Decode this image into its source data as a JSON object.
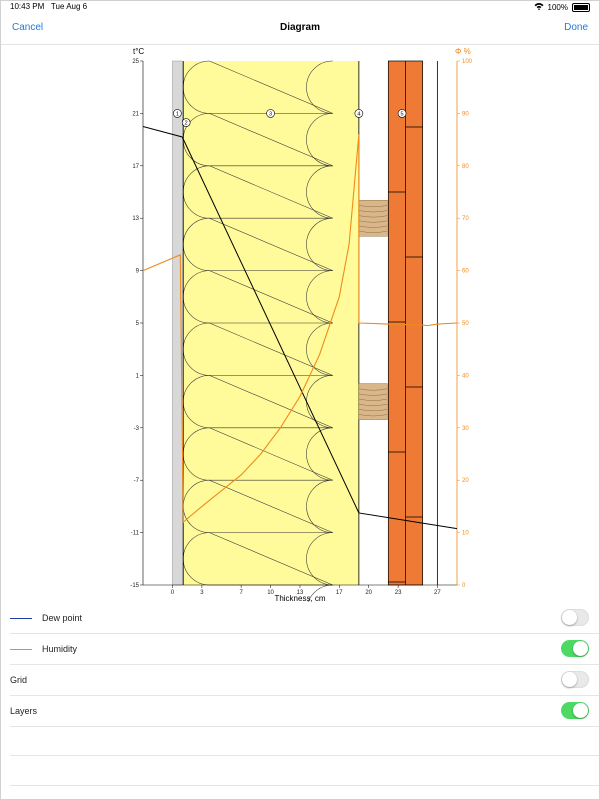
{
  "status": {
    "time": "10:43 PM",
    "date": "Tue Aug 6",
    "battery": "100%"
  },
  "nav": {
    "cancel": "Cancel",
    "title": "Diagram",
    "done": "Done"
  },
  "colors": {
    "accent": "#1f7bd8",
    "humidity": "#f08a1c",
    "dew": "#1f3fa0",
    "toggle_on": "#4cd964",
    "insulation": "#fffb9a",
    "brick": "#ef7a35",
    "plaster": "#d8d8d8",
    "wood": "#d9b78a"
  },
  "chart_data": {
    "type": "line",
    "xlabel": "Thickness, cm",
    "left_axis_label": "t°C",
    "right_axis_label": "Φ %",
    "x_ticks": [
      "0",
      "3",
      "7",
      "10",
      "13",
      "17",
      "20",
      "23",
      "27"
    ],
    "x_tick_values": [
      0,
      3,
      7,
      10,
      13,
      17,
      20,
      23,
      27
    ],
    "xlim": [
      -3,
      29
    ],
    "y_ticks": [
      "25",
      "21",
      "17",
      "13",
      "9",
      "5",
      "1",
      "-3",
      "-7",
      "-11",
      "-15"
    ],
    "y_tick_values": [
      25,
      21,
      17,
      13,
      9,
      5,
      1,
      -3,
      -7,
      -11,
      -15
    ],
    "ylim": [
      -15,
      25
    ],
    "y2_ticks": [
      "100",
      "90",
      "80",
      "70",
      "60",
      "50",
      "40",
      "30",
      "20",
      "10",
      "0"
    ],
    "y2_tick_values": [
      100,
      90,
      80,
      70,
      60,
      50,
      40,
      30,
      20,
      10,
      0
    ],
    "y2lim": [
      0,
      100
    ],
    "layers": [
      {
        "id": "1",
        "material": "plaster",
        "x0": 0,
        "x1": 1
      },
      {
        "id": "2",
        "material": "membrane",
        "x0": 1,
        "x1": 1.1
      },
      {
        "id": "3",
        "material": "insulation",
        "x0": 1.1,
        "x1": 19
      },
      {
        "id": "4",
        "material": "air",
        "x0": 19,
        "x1": 22
      },
      {
        "id": "5",
        "material": "brick",
        "x0": 22,
        "x1": 25.5
      }
    ],
    "layer_labels": [
      "1",
      "2",
      "3",
      "4",
      "5"
    ],
    "series": [
      {
        "name": "temperature",
        "axis": "left",
        "x": [
          -3,
          1,
          19,
          29
        ],
        "y": [
          20,
          19.2,
          -9.5,
          -10.7
        ]
      },
      {
        "name": "humidity",
        "axis": "right",
        "x": [
          -3,
          0.8,
          1.1,
          3,
          5,
          7,
          9,
          11,
          13,
          15,
          17,
          18,
          19,
          19,
          22,
          25.5,
          26,
          27,
          29
        ],
        "y": [
          60,
          63,
          12,
          15,
          18,
          21,
          25,
          30,
          36,
          44,
          55,
          65,
          86,
          50,
          49.8,
          49.6,
          49.5,
          49.8,
          50
        ]
      }
    ]
  },
  "settings": [
    {
      "label": "Dew point",
      "legend": "dew",
      "on": false
    },
    {
      "label": "Humidity",
      "legend": "humidity",
      "on": true
    },
    {
      "label": "Grid",
      "legend": "",
      "on": false
    },
    {
      "label": "Layers",
      "legend": "",
      "on": true
    }
  ]
}
